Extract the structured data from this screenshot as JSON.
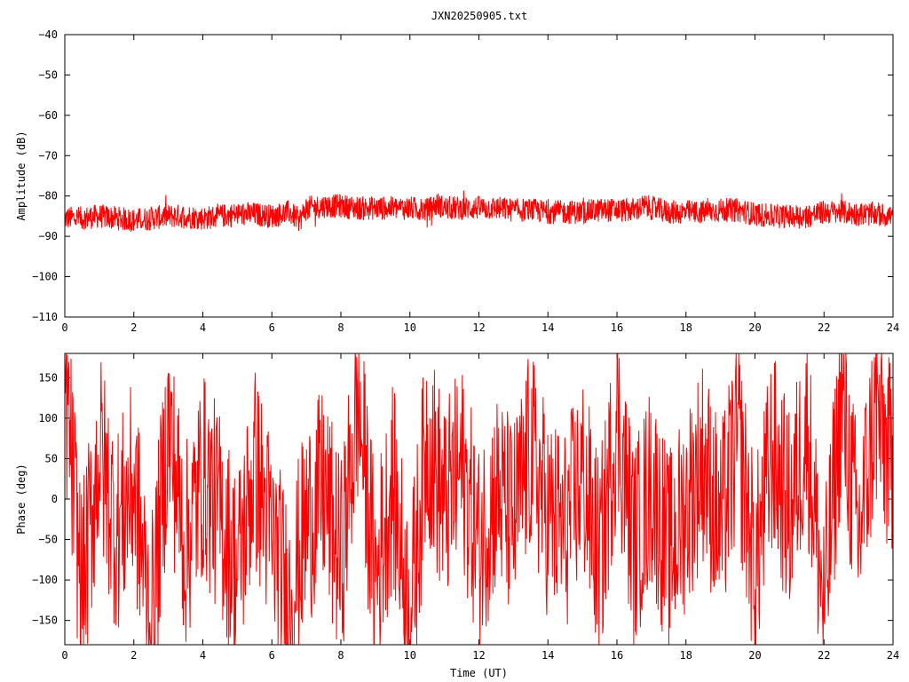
{
  "title": "JXN20250905.txt",
  "trace_color": "#ff0000",
  "chart_data": [
    {
      "type": "line",
      "ylabel": "Amplitude (dB)",
      "xlabel": "",
      "xlim": [
        0,
        24
      ],
      "ylim": [
        -110,
        -40
      ],
      "xticks": [
        0,
        2,
        4,
        6,
        8,
        10,
        12,
        14,
        16,
        18,
        20,
        22,
        24
      ],
      "yticks": [
        -40,
        -50,
        -60,
        -70,
        -80,
        -90,
        -100,
        -110
      ],
      "grid": false,
      "series": [
        {
          "x": [
            0,
            0.5,
            1,
            1.5,
            2,
            2.5,
            3,
            3.5,
            4,
            4.5,
            5,
            5.5,
            6,
            6.5,
            6.8,
            7,
            7.5,
            8,
            8.5,
            9,
            9.5,
            10,
            10.5,
            10.8,
            11,
            11.5,
            12,
            12.5,
            13,
            13.5,
            14,
            14.5,
            15,
            15.5,
            16,
            16.5,
            16.8,
            17,
            17.5,
            18,
            18.5,
            19,
            19.5,
            20,
            20.5,
            21,
            21.5,
            22,
            22.5,
            23,
            23.5,
            24
          ],
          "y": [
            -85.5,
            -85.5,
            -85,
            -85.5,
            -86,
            -85.5,
            -85,
            -85,
            -85.5,
            -85,
            -84.5,
            -84.5,
            -85,
            -84,
            -86,
            -83,
            -82.5,
            -82.5,
            -83,
            -83,
            -83,
            -83,
            -83.5,
            -82,
            -83,
            -83,
            -83,
            -83,
            -83.5,
            -83.5,
            -84,
            -84,
            -84,
            -83.5,
            -83.5,
            -83.5,
            -82.5,
            -83,
            -84,
            -84,
            -84,
            -83.5,
            -83.5,
            -84.5,
            -85,
            -85,
            -85,
            -84,
            -84,
            -84.5,
            -84.5,
            -85
          ]
        }
      ]
    },
    {
      "type": "line",
      "ylabel": "Phase (deg)",
      "xlabel": "Time (UT)",
      "xlim": [
        0,
        24
      ],
      "ylim": [
        -180,
        180
      ],
      "xticks": [
        0,
        2,
        4,
        6,
        8,
        10,
        12,
        14,
        16,
        18,
        20,
        22,
        24
      ],
      "yticks": [
        150,
        100,
        50,
        0,
        -50,
        -100,
        -150
      ],
      "grid": false,
      "series": [
        {
          "x": [
            0,
            0.5,
            1,
            1.5,
            2,
            2.5,
            3,
            3.5,
            4,
            4.5,
            5,
            5.5,
            6,
            6.5,
            7,
            7.5,
            8,
            8.5,
            9,
            9.5,
            10,
            10.5,
            11,
            11.5,
            12,
            12.5,
            13,
            13.5,
            14,
            14.5,
            15,
            15.5,
            16,
            16.5,
            17,
            17.5,
            18,
            18.5,
            19,
            19.5,
            20,
            20.5,
            21,
            21.5,
            22,
            22.5,
            23,
            23.5,
            24
          ],
          "y": [
            150,
            -120,
            60,
            -40,
            20,
            -160,
            90,
            -60,
            30,
            -20,
            -90,
            40,
            -50,
            -130,
            -30,
            10,
            -80,
            120,
            -100,
            20,
            -150,
            80,
            -10,
            40,
            -60,
            10,
            -30,
            60,
            -20,
            -40,
            30,
            -80,
            100,
            -60,
            20,
            -70,
            -10,
            50,
            -40,
            80,
            -90,
            60,
            -20,
            90,
            -140,
            120,
            -50,
            110,
            30
          ]
        }
      ]
    }
  ]
}
